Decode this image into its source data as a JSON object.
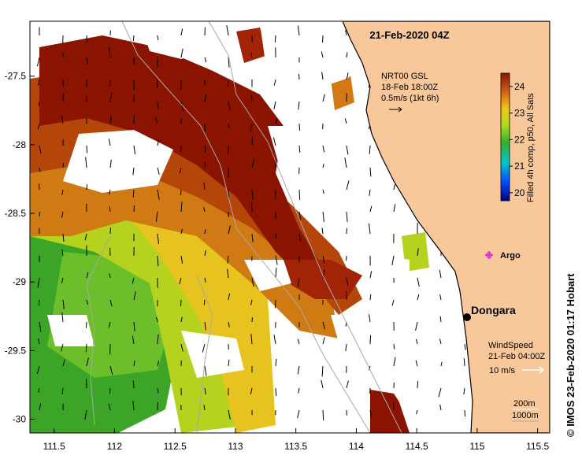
{
  "map": {
    "title": "21-Feb-2020 04Z",
    "lon_ticks": [
      "111.5",
      "112",
      "112.5",
      "113",
      "113.5",
      "114",
      "114.5",
      "115",
      "115.5"
    ],
    "lat_ticks": [
      "-27.5",
      "-28",
      "-28.5",
      "-29",
      "-29.5",
      "-30"
    ],
    "lon_range": [
      111.3,
      115.6
    ],
    "lat_range": [
      -30.1,
      -27.1
    ],
    "current_legend": {
      "line1": "NRT00 GSL",
      "line2": "18-Feb 18:00Z",
      "line3": "0.5m/s (1kt 6h)"
    },
    "colorbar": {
      "label": "Filled 4h comp, p50, All Sats",
      "ticks": [
        "24",
        "23",
        "22",
        "21",
        "20"
      ],
      "range": [
        19.7,
        24.5
      ]
    },
    "argo_label": "Argo",
    "station_label": "Dongara",
    "wind_legend": {
      "line1": "WindSpeed",
      "line2": "21-Feb 04:00Z",
      "line3": "10 m/s"
    },
    "depth_legend": {
      "line1": "200m",
      "line2": "1000m"
    },
    "credit": "© IMOS 23-Feb-2020 01:17 Hobart",
    "colors": {
      "land": "#f8c89a",
      "coast": "#000000",
      "sst_hot": "#8b1400",
      "sst_warm": "#c8640a",
      "sst_mid": "#e6b419",
      "sst_cool": "#aad21e",
      "sst_green": "#3ca528",
      "argo": "#e020e0"
    }
  }
}
